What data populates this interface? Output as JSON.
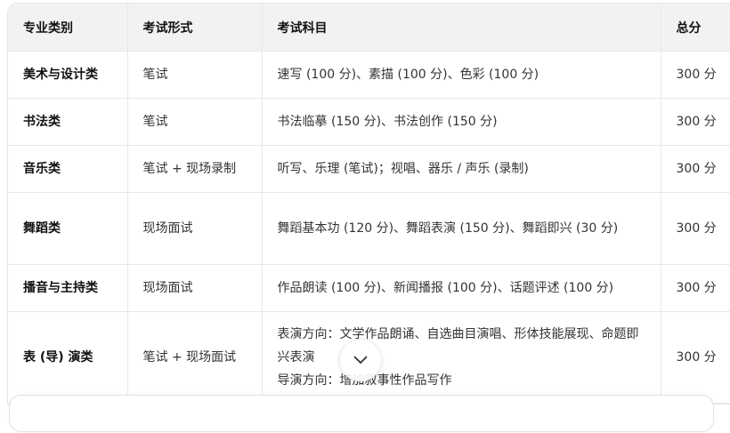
{
  "table": {
    "headers": [
      "专业类别",
      "考试形式",
      "考试科目",
      "总分"
    ],
    "rows": [
      {
        "category": "美术与设计类",
        "format": "笔试",
        "subjects": [
          "速写 (100 分)、素描 (100 分)、色彩 (100 分)"
        ],
        "total": "300 分"
      },
      {
        "category": "书法类",
        "format": "笔试",
        "subjects": [
          "书法临摹 (150 分)、书法创作 (150 分)"
        ],
        "total": "300 分"
      },
      {
        "category": "音乐类",
        "format": "笔试 + 现场录制",
        "subjects": [
          "听写、乐理 (笔试)；视唱、器乐 / 声乐 (录制)"
        ],
        "total": "300 分"
      },
      {
        "category": "舞蹈类",
        "format": "现场面试",
        "subjects": [
          "舞蹈基本功 (120 分)、舞蹈表演 (150 分)、舞蹈即兴 (30 分)"
        ],
        "total": "300 分"
      },
      {
        "category": "播音与主持类",
        "format": "现场面试",
        "subjects": [
          "作品朗读 (100 分)、新闻播报 (100 分)、话题评述 (100 分)"
        ],
        "total": "300 分"
      },
      {
        "category": "表 (导) 演类",
        "format": "笔试 + 现场面试",
        "subjects": [
          "表演方向：文学作品朗诵、自选曲目演唱、形体技能展现、命题即兴表演",
          "导演方向：增加叙事性作品写作"
        ],
        "total": "300 分"
      }
    ]
  },
  "icons": {
    "scroll_down": "chevron-down-icon"
  }
}
